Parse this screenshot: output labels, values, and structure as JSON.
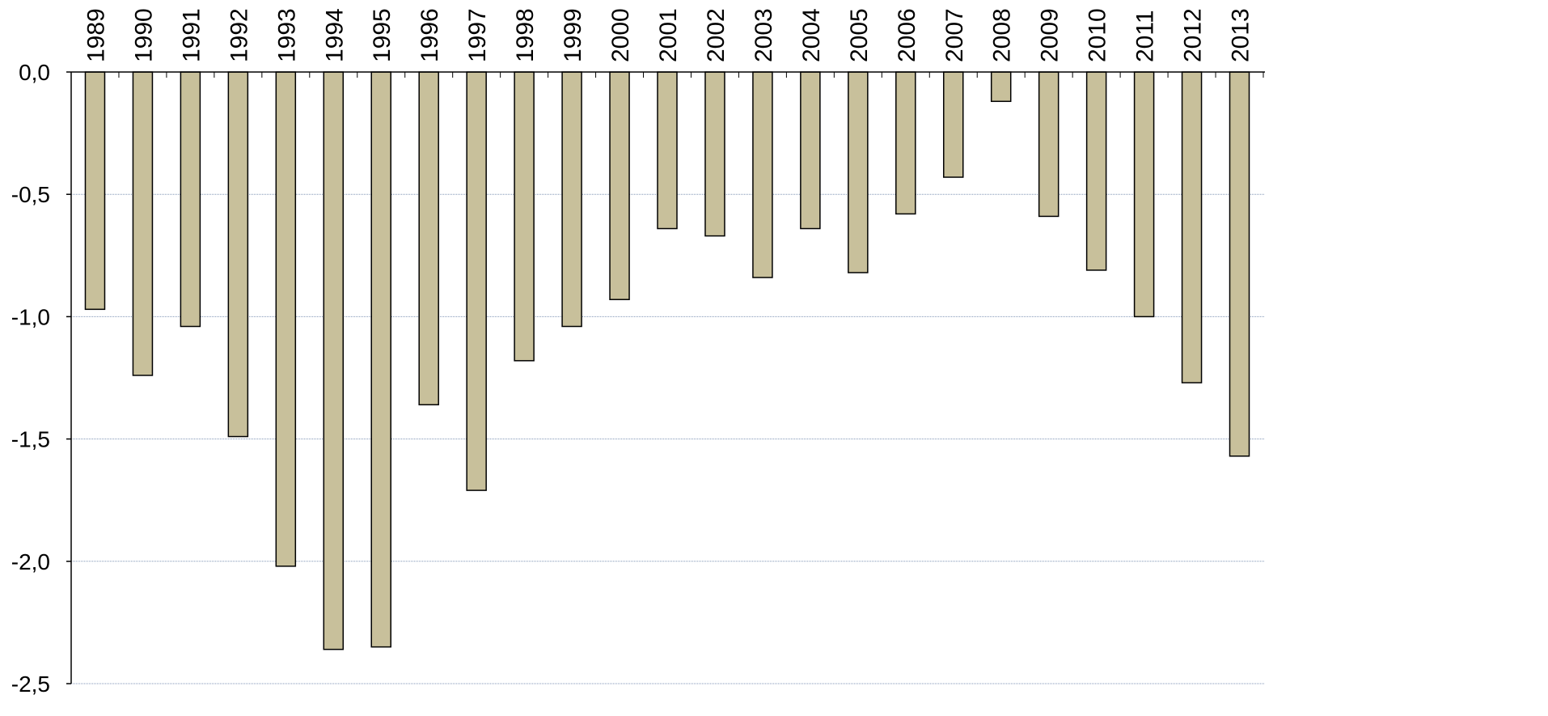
{
  "chart_data": {
    "type": "bar",
    "title": "",
    "xlabel": "",
    "ylabel": "",
    "categories": [
      "1989",
      "1990",
      "1991",
      "1992",
      "1993",
      "1994",
      "1995",
      "1996",
      "1997",
      "1998",
      "1999",
      "2000",
      "2001",
      "2002",
      "2003",
      "2004",
      "2005",
      "2006",
      "2007",
      "2008",
      "2009",
      "2010",
      "2011",
      "2012",
      "2013"
    ],
    "values": [
      -0.97,
      -1.24,
      -1.04,
      -1.49,
      -2.02,
      -2.36,
      -2.35,
      -1.36,
      -1.71,
      -1.18,
      -1.04,
      -0.93,
      -0.64,
      -0.67,
      -0.84,
      -0.64,
      -0.82,
      -0.58,
      -0.43,
      -0.12,
      -0.59,
      -0.81,
      -1.0,
      -1.27,
      -1.57
    ],
    "ylim": [
      -2.5,
      0.0
    ],
    "yticks": [
      0.0,
      -0.5,
      -1.0,
      -1.5,
      -2.0,
      -2.5
    ],
    "ytick_labels": [
      "0,0",
      "-0,5",
      "-1,0",
      "-1,5",
      "-2,0",
      "-2,5"
    ],
    "grid": true,
    "legend": "none",
    "colors": {
      "bar_fill": "#c8c09b",
      "bar_stroke": "#000000",
      "axis": "#000000",
      "grid": "#7f93b4"
    }
  }
}
